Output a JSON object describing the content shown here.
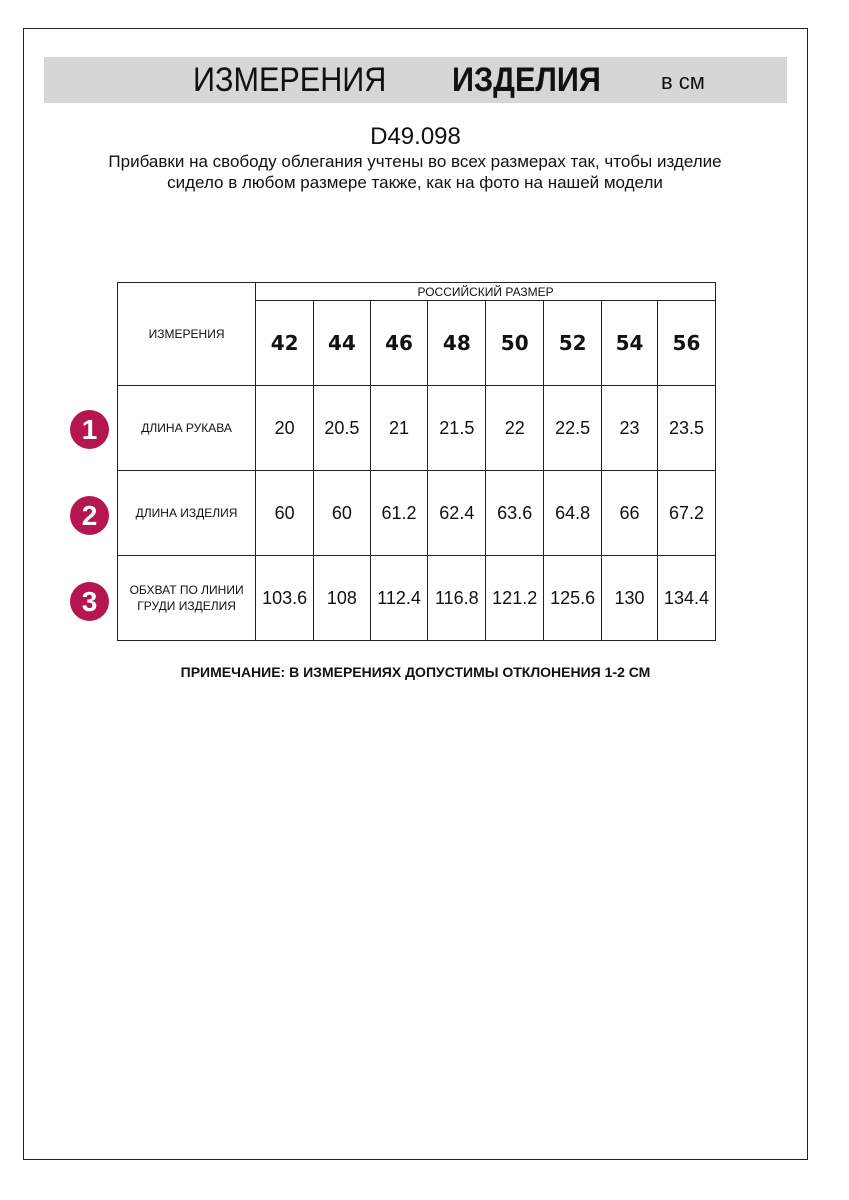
{
  "header": {
    "title_regular": "ИЗМЕРЕНИЯ",
    "title_bold": "ИЗДЕЛИЯ",
    "unit": "в см"
  },
  "product_code": "D49.098",
  "description": "Прибавки на свободу облегания учтены во всех размерах так, чтобы изделие сидело в любом размере также, как на фото на нашей модели",
  "table": {
    "corner_label": "ИЗМЕРЕНИЯ",
    "group_header": "РОССИЙСКИЙ РАЗМЕР",
    "sizes": [
      "42",
      "44",
      "46",
      "48",
      "50",
      "52",
      "54",
      "56"
    ],
    "rows": [
      {
        "badge": "1",
        "label": "ДЛИНА РУКАВА",
        "values": [
          "20",
          "20.5",
          "21",
          "21.5",
          "22",
          "22.5",
          "23",
          "23.5"
        ]
      },
      {
        "badge": "2",
        "label": "ДЛИНА ИЗДЕЛИЯ",
        "values": [
          "60",
          "60",
          "61.2",
          "62.4",
          "63.6",
          "64.8",
          "66",
          "67.2"
        ]
      },
      {
        "badge": "3",
        "label": "ОБХВАТ ПО ЛИНИИ ГРУДИ ИЗДЕЛИЯ",
        "values": [
          "103.6",
          "108",
          "112.4",
          "116.8",
          "121.2",
          "125.6",
          "130",
          "134.4"
        ]
      }
    ]
  },
  "note": "ПРИМЕЧАНИЕ: В ИЗМЕРЕНИЯХ ДОПУСТИМЫ ОТКЛОНЕНИЯ 1-2 СМ",
  "colors": {
    "badge": "#b5164f",
    "header_bar": "#d6d6d6"
  }
}
